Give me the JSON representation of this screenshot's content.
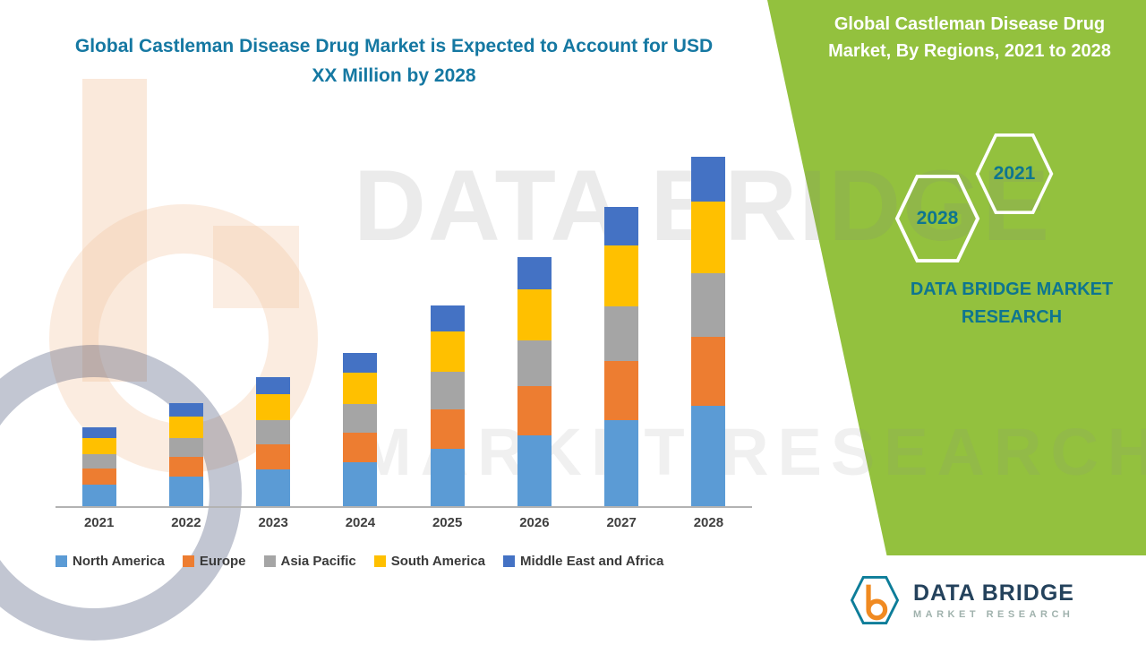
{
  "page": {
    "title": "Global Castleman Disease Drug Market is Expected to Account for USD XX Million by 2028",
    "side_title": "Global Castleman Disease Drug Market, By Regions, 2021 to 2028",
    "badge_2028": "2028",
    "badge_2021": "2021",
    "brand_text": "DATA BRIDGE MARKET RESEARCH",
    "watermark_line1": "DATA BRIDGE",
    "watermark_line2": "MARKET RESEARCH",
    "logo": {
      "name": "DATA BRIDGE",
      "sub": "MARKET RESEARCH"
    }
  },
  "colors": {
    "panel_green": "#93C13E",
    "title_teal": "#1578A2",
    "badge_teal": "#0E7590",
    "north_america": "#5B9BD5",
    "europe": "#ED7D31",
    "asia_pacific": "#A5A5A5",
    "south_america": "#FFC000",
    "middle_east_africa": "#4472C4"
  },
  "chart_data": {
    "type": "bar",
    "stacked": true,
    "title": "Global Castleman Disease Drug Market is Expected to Account for USD XX Million by 2028",
    "xlabel": "",
    "ylabel": "",
    "value_axis_labels_visible": false,
    "ylim": [
      0,
      40
    ],
    "legend_position": "bottom",
    "grid": false,
    "categories": [
      "2021",
      "2022",
      "2023",
      "2024",
      "2025",
      "2026",
      "2027",
      "2028"
    ],
    "series": [
      {
        "name": "North America",
        "color": "#5B9BD5",
        "values": [
          2.4,
          3.2,
          4.0,
          4.8,
          6.3,
          7.8,
          9.4,
          11.0
        ]
      },
      {
        "name": "Europe",
        "color": "#ED7D31",
        "values": [
          1.7,
          2.2,
          2.8,
          3.3,
          4.3,
          5.4,
          6.5,
          7.6
        ]
      },
      {
        "name": "Asia Pacific",
        "color": "#A5A5A5",
        "values": [
          1.6,
          2.1,
          2.6,
          3.1,
          4.1,
          5.0,
          6.0,
          7.0
        ]
      },
      {
        "name": "South America",
        "color": "#FFC000",
        "values": [
          1.8,
          2.3,
          2.9,
          3.4,
          4.5,
          5.6,
          6.7,
          7.8
        ]
      },
      {
        "name": "Middle East and Africa",
        "color": "#4472C4",
        "values": [
          1.2,
          1.5,
          1.9,
          2.2,
          2.8,
          3.5,
          4.2,
          4.9
        ]
      }
    ]
  }
}
